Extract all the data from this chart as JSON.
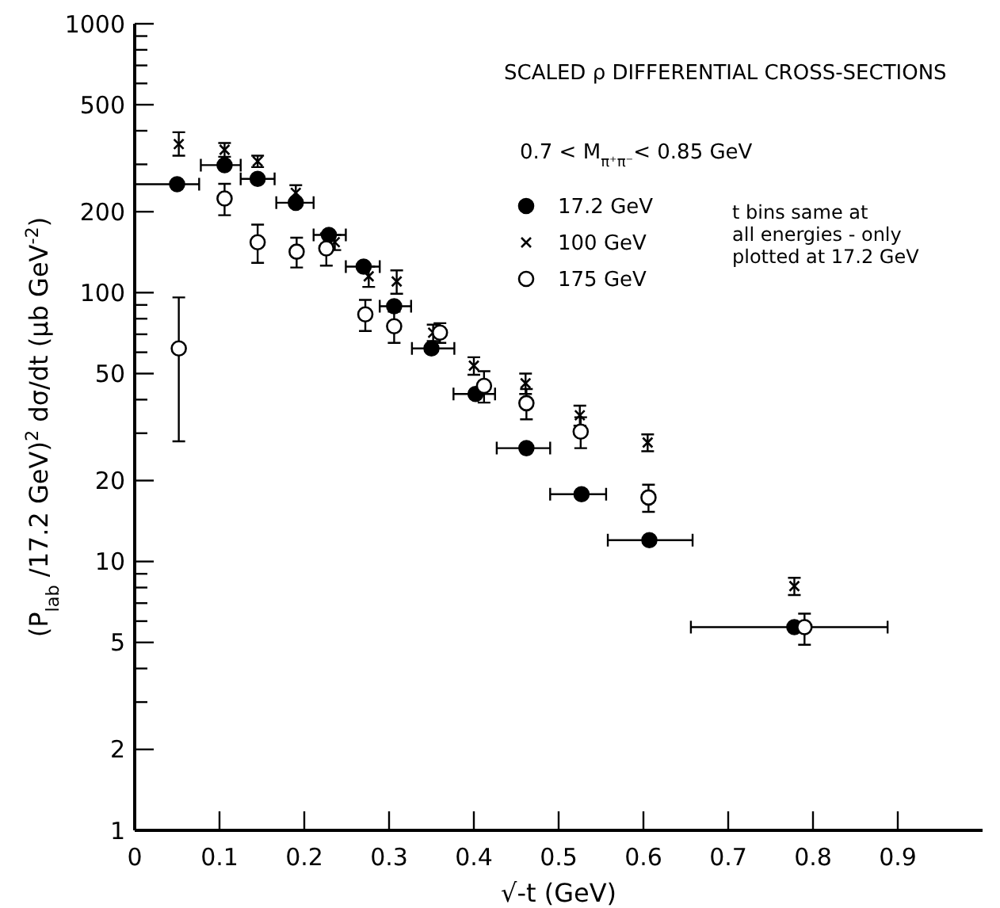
{
  "chart_data": {
    "type": "scatter",
    "title": "SCALED ρ DIFFERENTIAL CROSS-SECTIONS",
    "xlabel": "√-t  (GeV)",
    "ylabel": "(P$_{lab}$ /17.2 GeV)$^{2}$ dσ/dt  (μb GeV$^{-2}$)",
    "legend_title": "0.7 < M$_{π⁺π⁻}$< 0.85 GeV",
    "legend": "top right",
    "log": "y",
    "xlim": [
      0,
      1
    ],
    "ylim": [
      1,
      1000
    ],
    "xticks": [
      0,
      0.1,
      0.2,
      0.3,
      0.4,
      0.5,
      0.6,
      0.7,
      0.8,
      0.9
    ],
    "yticks": [
      1,
      2,
      {
        "value": 3,
        "label": null
      },
      {
        "value": 4,
        "label": null
      },
      5,
      {
        "value": 6,
        "label": null
      },
      {
        "value": 7,
        "label": null
      },
      {
        "value": 8,
        "label": null
      },
      {
        "value": 9,
        "label": null
      },
      10,
      20,
      {
        "value": 30,
        "label": null
      },
      {
        "value": 40,
        "label": null
      },
      50,
      {
        "value": 60,
        "label": null
      },
      {
        "value": 70,
        "label": null
      },
      {
        "value": 80,
        "label": null
      },
      {
        "value": 90,
        "label": null
      },
      100,
      200,
      {
        "value": 300,
        "label": null
      },
      {
        "value": 400,
        "label": null
      },
      500,
      {
        "value": 600,
        "label": null
      },
      {
        "value": 700,
        "label": null
      },
      {
        "value": 800,
        "label": null
      },
      {
        "value": 900,
        "label": null
      },
      1000
    ],
    "grid": false,
    "annotations": [
      "t bins same at\nall energies - only\nplotted at 17.2 GeV"
    ],
    "series": [
      {
        "name": "17.2 GeV",
        "color": "#000000",
        "marker": "circle",
        "x": [
          0.05,
          0.106,
          0.145,
          0.19,
          0.229,
          0.27,
          0.306,
          0.35,
          0.402,
          0.462,
          0.527,
          0.607,
          0.778
        ],
        "values": [
          253,
          298,
          265,
          216,
          164,
          125,
          89,
          62,
          42,
          26.4,
          17.8,
          12,
          5.7
        ],
        "xerrors": [
          [
            0,
            0.076
          ],
          [
            0.078,
            0.125
          ],
          [
            0.125,
            0.165
          ],
          [
            0.167,
            0.211
          ],
          [
            0.211,
            0.249
          ],
          [
            0.249,
            0.289
          ],
          [
            0.289,
            0.326
          ],
          [
            0.327,
            0.377
          ],
          [
            0.376,
            0.425
          ],
          [
            0.427,
            0.49
          ],
          [
            0.49,
            0.556
          ],
          [
            0.558,
            0.658
          ],
          [
            0.656,
            0.888
          ]
        ]
      },
      {
        "name": "100 GeV",
        "color": "#000000",
        "marker": "cross",
        "x": [
          0.052,
          0.106,
          0.145,
          0.19,
          0.236,
          0.276,
          0.309,
          0.352,
          0.4,
          0.461,
          0.525,
          0.605,
          0.778
        ],
        "values": [
          357,
          340,
          308,
          235,
          154,
          115,
          110,
          71,
          53.5,
          46,
          35,
          27.7,
          8.1
        ],
        "errors": [
          [
            323,
            395
          ],
          20,
          15,
          16,
          10,
          10,
          11,
          5,
          4,
          4,
          3,
          2,
          0.6
        ]
      },
      {
        "name": "175 GeV",
        "color": "#ffffff",
        "marker": "circle",
        "x": [
          0.052,
          0.106,
          0.145,
          0.191,
          0.226,
          0.272,
          0.306,
          0.36,
          0.412,
          0.462,
          0.526,
          0.606,
          0.79
        ],
        "values": [
          62,
          224,
          154,
          142,
          146,
          83,
          75,
          71,
          45,
          38.8,
          30.4,
          17.3,
          5.7
        ],
        "errors": [
          34,
          30,
          25,
          18,
          20,
          11,
          10,
          6,
          6,
          5,
          4,
          2,
          [
            4.9,
            6.4
          ]
        ]
      }
    ]
  }
}
